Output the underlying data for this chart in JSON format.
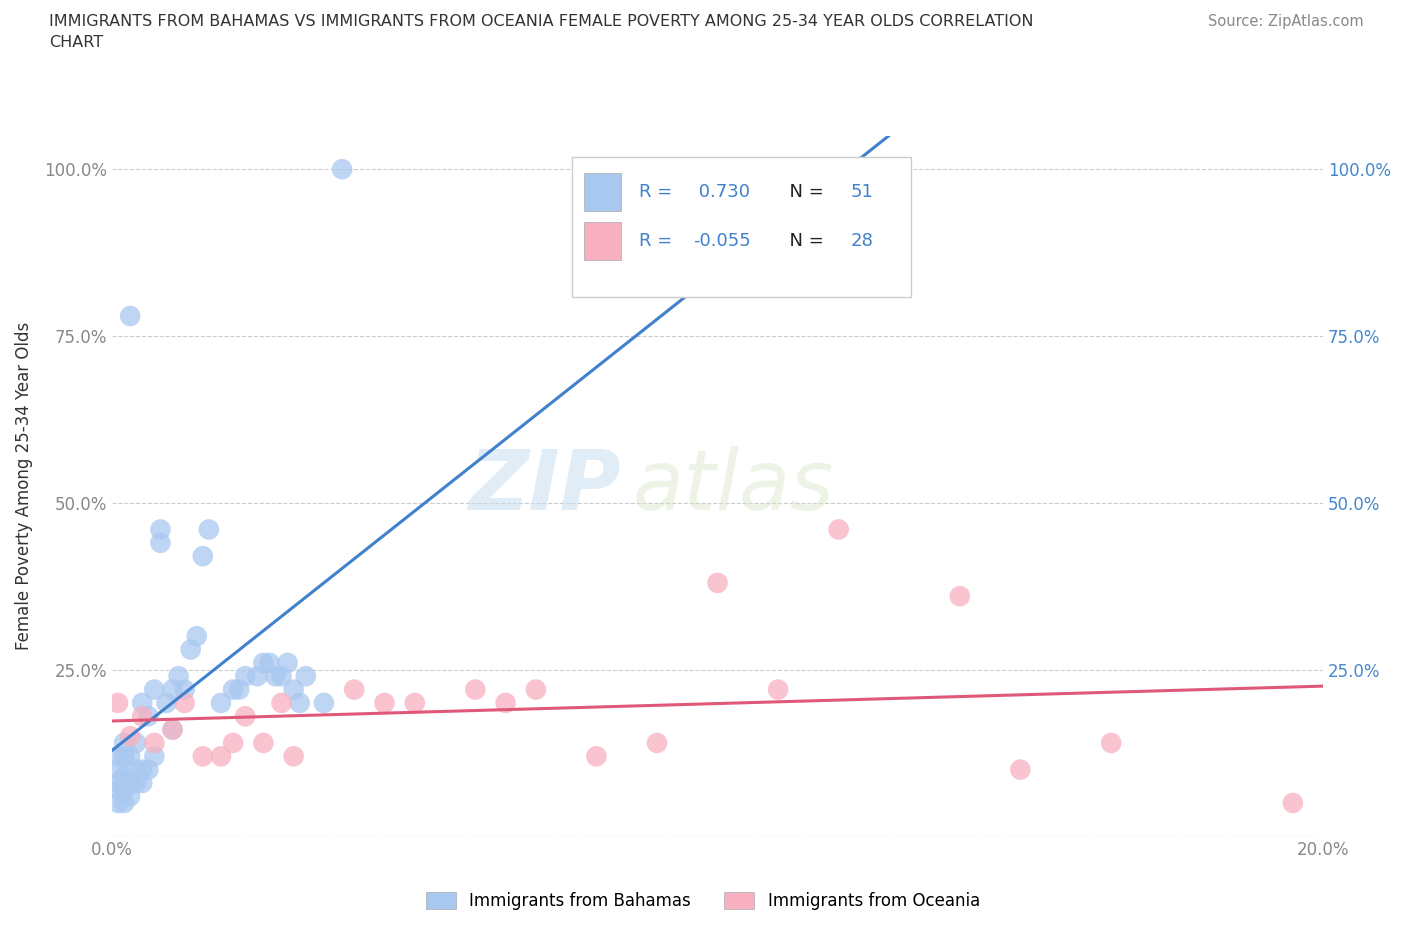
{
  "title": "IMMIGRANTS FROM BAHAMAS VS IMMIGRANTS FROM OCEANIA FEMALE POVERTY AMONG 25-34 YEAR OLDS CORRELATION\nCHART",
  "source": "Source: ZipAtlas.com",
  "ylabel": "Female Poverty Among 25-34 Year Olds",
  "xlim": [
    0.0,
    0.2
  ],
  "ylim": [
    0.0,
    1.05
  ],
  "xticks": [
    0.0,
    0.05,
    0.1,
    0.15,
    0.2
  ],
  "yticks": [
    0.0,
    0.25,
    0.5,
    0.75,
    1.0
  ],
  "xtick_labels": [
    "0.0%",
    "",
    "",
    "",
    "20.0%"
  ],
  "ytick_labels_left": [
    "",
    "25.0%",
    "50.0%",
    "75.0%",
    "100.0%"
  ],
  "ytick_labels_right": [
    "",
    "25.0%",
    "50.0%",
    "75.0%",
    "100.0%"
  ],
  "bahamas_R": 0.73,
  "bahamas_N": 51,
  "oceania_R": -0.055,
  "oceania_N": 28,
  "bahamas_color": "#a8c8f0",
  "oceania_color": "#f8b0c0",
  "trend_bahamas_color": "#4080cc",
  "trend_oceania_color": "#e05878",
  "watermark_zip": "ZIP",
  "watermark_atlas": "atlas",
  "bahamas_x": [
    0.001,
    0.001,
    0.001,
    0.001,
    0.001,
    0.002,
    0.002,
    0.002,
    0.002,
    0.002,
    0.002,
    0.003,
    0.003,
    0.003,
    0.003,
    0.004,
    0.004,
    0.004,
    0.005,
    0.005,
    0.005,
    0.006,
    0.006,
    0.007,
    0.007,
    0.008,
    0.008,
    0.009,
    0.01,
    0.01,
    0.011,
    0.012,
    0.013,
    0.014,
    0.015,
    0.016,
    0.018,
    0.02,
    0.021,
    0.022,
    0.024,
    0.025,
    0.026,
    0.027,
    0.028,
    0.029,
    0.03,
    0.031,
    0.032,
    0.035,
    0.038
  ],
  "bahamas_y": [
    0.05,
    0.07,
    0.08,
    0.1,
    0.12,
    0.05,
    0.07,
    0.08,
    0.09,
    0.12,
    0.14,
    0.06,
    0.08,
    0.12,
    0.78,
    0.08,
    0.1,
    0.14,
    0.08,
    0.1,
    0.2,
    0.1,
    0.18,
    0.12,
    0.22,
    0.44,
    0.46,
    0.2,
    0.16,
    0.22,
    0.24,
    0.22,
    0.28,
    0.3,
    0.42,
    0.46,
    0.2,
    0.22,
    0.22,
    0.24,
    0.24,
    0.26,
    0.26,
    0.24,
    0.24,
    0.26,
    0.22,
    0.2,
    0.24,
    0.2,
    1.0
  ],
  "oceania_x": [
    0.001,
    0.003,
    0.005,
    0.007,
    0.01,
    0.012,
    0.015,
    0.018,
    0.02,
    0.022,
    0.025,
    0.028,
    0.03,
    0.04,
    0.045,
    0.05,
    0.06,
    0.065,
    0.07,
    0.08,
    0.09,
    0.1,
    0.11,
    0.12,
    0.14,
    0.15,
    0.165,
    0.195
  ],
  "oceania_y": [
    0.2,
    0.15,
    0.18,
    0.14,
    0.16,
    0.2,
    0.12,
    0.12,
    0.14,
    0.18,
    0.14,
    0.2,
    0.12,
    0.22,
    0.2,
    0.2,
    0.22,
    0.2,
    0.22,
    0.12,
    0.14,
    0.38,
    0.22,
    0.46,
    0.36,
    0.1,
    0.14,
    0.05
  ]
}
